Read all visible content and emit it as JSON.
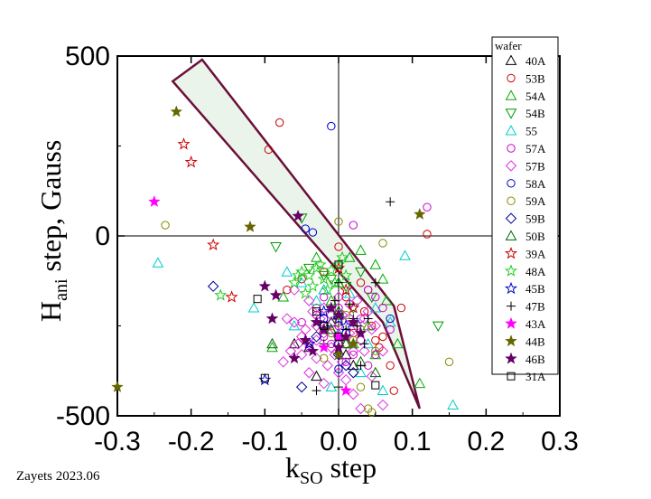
{
  "credit": "Zayets 2023.06",
  "chart_data": {
    "type": "scatter",
    "title": "",
    "xlabel": {
      "main": "k",
      "sub": "SO",
      "rest": " step"
    },
    "ylabel": {
      "main": "H",
      "sub": "ani",
      "rest": " step, Gauss"
    },
    "xlim": [
      -0.3,
      0.3
    ],
    "ylim": [
      -500,
      500
    ],
    "xticks": [
      "-0.3",
      "-0.2",
      "-0.1",
      "0.0",
      "0.1",
      "0.2",
      "0.3"
    ],
    "yticks": [
      "500",
      "0",
      "-500"
    ],
    "legend_title": "wafer",
    "legend_position": "right",
    "grid": false,
    "zero_lines": true,
    "arrow": {
      "shaft_start_left": [
        -0.225,
        430
      ],
      "shaft_start_right": [
        -0.185,
        490
      ],
      "shaft_end_left": [
        0.06,
        -240
      ],
      "shaft_end_right": [
        0.075,
        -195
      ],
      "tip": [
        0.11,
        -480
      ],
      "color": "#6b0f3a",
      "fill": "#eaf4ea"
    },
    "series": [
      {
        "name": "40A",
        "marker": "triangle",
        "color": "#000000",
        "points": [
          [
            -0.04,
            -310
          ],
          [
            -0.03,
            -390
          ],
          [
            -0.02,
            -260
          ],
          [
            0.01,
            -330
          ],
          [
            0.02,
            -360
          ],
          [
            -0.06,
            -300
          ],
          [
            0.0,
            -220
          ],
          [
            -0.01,
            -240
          ]
        ]
      },
      {
        "name": "53B",
        "marker": "circle",
        "color": "#cc0000",
        "points": [
          [
            -0.095,
            240
          ],
          [
            -0.08,
            315
          ],
          [
            0.0,
            -30
          ],
          [
            -0.02,
            -100
          ],
          [
            0.03,
            -130
          ],
          [
            0.04,
            -150
          ],
          [
            0.045,
            -250
          ],
          [
            0.05,
            -290
          ],
          [
            0.055,
            -310
          ],
          [
            0.07,
            -360
          ],
          [
            0.075,
            -430
          ],
          [
            0.12,
            5
          ],
          [
            0.06,
            -280
          ],
          [
            0.085,
            -200
          ],
          [
            0.02,
            -270
          ],
          [
            -0.05,
            -120
          ],
          [
            -0.07,
            -150
          ],
          [
            -0.03,
            -200
          ],
          [
            0.01,
            -170
          ],
          [
            0.035,
            -210
          ]
        ]
      },
      {
        "name": "54A",
        "marker": "triangle",
        "color": "#00aa00",
        "points": [
          [
            0.03,
            -40
          ],
          [
            0.05,
            -80
          ],
          [
            0.06,
            -120
          ],
          [
            0.015,
            -60
          ],
          [
            -0.02,
            -150
          ],
          [
            -0.01,
            -180
          ],
          [
            0.0,
            -130
          ],
          [
            0.04,
            -250
          ],
          [
            0.05,
            -330
          ],
          [
            0.08,
            -300
          ],
          [
            0.11,
            -410
          ],
          [
            -0.09,
            -310
          ],
          [
            -0.075,
            -170
          ],
          [
            0.02,
            -300
          ],
          [
            0.065,
            -180
          ],
          [
            -0.03,
            -60
          ]
        ]
      },
      {
        "name": "54B",
        "marker": "triangle-down",
        "color": "#009900",
        "points": [
          [
            -0.085,
            -30
          ],
          [
            -0.05,
            50
          ],
          [
            0.0,
            -220
          ],
          [
            0.02,
            -200
          ],
          [
            -0.01,
            -120
          ],
          [
            0.135,
            -250
          ],
          [
            0.03,
            -100
          ],
          [
            -0.04,
            -90
          ],
          [
            0.01,
            -140
          ],
          [
            -0.02,
            -110
          ],
          [
            0.045,
            -170
          ]
        ]
      },
      {
        "name": "55",
        "marker": "triangle",
        "color": "#00cccc",
        "points": [
          [
            -0.245,
            -75
          ],
          [
            -0.115,
            -200
          ],
          [
            -0.05,
            -130
          ],
          [
            -0.03,
            -180
          ],
          [
            0.015,
            -160
          ],
          [
            0.09,
            -55
          ],
          [
            0.155,
            -470
          ],
          [
            0.06,
            -430
          ],
          [
            0.04,
            -300
          ],
          [
            0.0,
            -270
          ],
          [
            0.025,
            -240
          ],
          [
            -0.02,
            -150
          ],
          [
            0.05,
            -200
          ],
          [
            0.07,
            -240
          ],
          [
            -0.06,
            -250
          ],
          [
            -0.07,
            -100
          ],
          [
            0.03,
            -380
          ],
          [
            -0.01,
            -420
          ]
        ]
      },
      {
        "name": "57A",
        "marker": "circle",
        "color": "#cc00cc",
        "points": [
          [
            0.12,
            80
          ],
          [
            0.02,
            30
          ],
          [
            0.04,
            -150
          ],
          [
            0.06,
            -200
          ],
          [
            0.0,
            -250
          ],
          [
            -0.02,
            -280
          ],
          [
            0.03,
            -290
          ],
          [
            -0.04,
            -310
          ],
          [
            0.01,
            -350
          ],
          [
            0.05,
            -330
          ],
          [
            -0.01,
            -300
          ],
          [
            0.02,
            -330
          ],
          [
            0.04,
            -360
          ],
          [
            -0.03,
            -220
          ],
          [
            0.0,
            -200
          ],
          [
            0.05,
            -170
          ],
          [
            -0.02,
            -170
          ],
          [
            0.03,
            -230
          ],
          [
            0.07,
            -260
          ],
          [
            -0.05,
            -240
          ]
        ]
      },
      {
        "name": "57B",
        "marker": "diamond",
        "color": "#dd33dd",
        "points": [
          [
            -0.06,
            -240
          ],
          [
            -0.05,
            -280
          ],
          [
            -0.04,
            -300
          ],
          [
            -0.03,
            -250
          ],
          [
            -0.02,
            -270
          ],
          [
            -0.01,
            -310
          ],
          [
            0.0,
            -280
          ],
          [
            0.01,
            -300
          ],
          [
            0.02,
            -320
          ],
          [
            0.03,
            -290
          ],
          [
            -0.035,
            -210
          ],
          [
            -0.025,
            -230
          ],
          [
            -0.015,
            -250
          ],
          [
            -0.005,
            -330
          ],
          [
            0.005,
            -350
          ],
          [
            0.015,
            -270
          ],
          [
            0.025,
            -250
          ],
          [
            0.035,
            -230
          ],
          [
            0.045,
            -260
          ],
          [
            -0.045,
            -260
          ],
          [
            -0.055,
            -300
          ],
          [
            -0.065,
            -320
          ],
          [
            0.0,
            -380
          ],
          [
            0.01,
            -400
          ],
          [
            0.02,
            -440
          ],
          [
            0.03,
            -480
          ],
          [
            -0.015,
            -360
          ],
          [
            -0.03,
            -340
          ],
          [
            0.04,
            -210
          ],
          [
            0.05,
            -250
          ],
          [
            -0.04,
            -180
          ],
          [
            -0.07,
            -230
          ],
          [
            -0.075,
            -350
          ],
          [
            0.06,
            -320
          ],
          [
            -0.02,
            -200
          ],
          [
            0.0,
            -170
          ],
          [
            0.015,
            -230
          ],
          [
            -0.05,
            -330
          ],
          [
            0.025,
            -180
          ],
          [
            -0.01,
            -220
          ],
          [
            -0.04,
            -380
          ],
          [
            -0.02,
            -410
          ],
          [
            0.005,
            -220
          ],
          [
            0.035,
            -320
          ],
          [
            -0.06,
            -150
          ],
          [
            0.06,
            -470
          ],
          [
            0.045,
            -390
          ],
          [
            -0.03,
            -290
          ],
          [
            0.015,
            -190
          ],
          [
            -0.005,
            -260
          ]
        ]
      },
      {
        "name": "58A",
        "marker": "circle",
        "color": "#0000cc",
        "points": [
          [
            -0.01,
            305
          ],
          [
            -0.045,
            20
          ],
          [
            -0.035,
            10
          ],
          [
            0.07,
            -230
          ],
          [
            0.0,
            -370
          ],
          [
            -0.02,
            -230
          ],
          [
            0.01,
            -270
          ]
        ]
      },
      {
        "name": "59A",
        "marker": "circle",
        "color": "#888800",
        "points": [
          [
            -0.235,
            30
          ],
          [
            0.0,
            40
          ],
          [
            0.06,
            -20
          ],
          [
            0.15,
            -350
          ],
          [
            0.04,
            -480
          ],
          [
            0.045,
            -490
          ],
          [
            0.03,
            -420
          ],
          [
            0.01,
            -300
          ],
          [
            -0.02,
            -340
          ],
          [
            0.0,
            -240
          ],
          [
            0.02,
            -290
          ],
          [
            0.05,
            -320
          ],
          [
            -0.01,
            -270
          ],
          [
            0.01,
            -220
          ],
          [
            0.03,
            -260
          ]
        ]
      },
      {
        "name": "59B",
        "marker": "diamond",
        "color": "#000099",
        "points": [
          [
            -0.17,
            -140
          ],
          [
            -0.02,
            -250
          ],
          [
            0.0,
            -330
          ],
          [
            0.01,
            -360
          ],
          [
            -0.03,
            -280
          ],
          [
            -0.05,
            -420
          ],
          [
            0.02,
            -380
          ],
          [
            0.0,
            -300
          ]
        ]
      },
      {
        "name": "50B",
        "marker": "triangle",
        "color": "#006600",
        "points": [
          [
            0.03,
            -350
          ],
          [
            0.05,
            -380
          ],
          [
            0.01,
            -300
          ],
          [
            -0.01,
            -260
          ],
          [
            0.0,
            -210
          ],
          [
            -0.09,
            -300
          ]
        ]
      },
      {
        "name": "39A",
        "marker": "star-open",
        "color": "#cc0000",
        "points": [
          [
            -0.21,
            255
          ],
          [
            -0.2,
            205
          ],
          [
            -0.17,
            -25
          ],
          [
            -0.145,
            -170
          ],
          [
            0.0,
            -90
          ],
          [
            0.01,
            -150
          ],
          [
            0.02,
            -200
          ]
        ]
      },
      {
        "name": "48A",
        "marker": "star-open",
        "color": "#22cc22",
        "points": [
          [
            -0.16,
            -165
          ],
          [
            -0.05,
            -100
          ],
          [
            -0.04,
            -110
          ],
          [
            -0.03,
            -90
          ],
          [
            -0.02,
            -120
          ],
          [
            -0.01,
            -95
          ],
          [
            0.0,
            -80
          ],
          [
            -0.06,
            -130
          ],
          [
            -0.035,
            -140
          ],
          [
            -0.015,
            -150
          ],
          [
            0.01,
            -110
          ],
          [
            -0.045,
            -160
          ],
          [
            -0.025,
            -80
          ],
          [
            0.005,
            -60
          ],
          [
            -0.055,
            -110
          ],
          [
            -0.005,
            -130
          ]
        ]
      },
      {
        "name": "45B",
        "marker": "star-open",
        "color": "#0000cc",
        "points": [
          [
            -0.1,
            -400
          ],
          [
            0.0,
            -230
          ],
          [
            -0.02,
            -210
          ],
          [
            0.01,
            -250
          ],
          [
            -0.04,
            -300
          ]
        ]
      },
      {
        "name": "47B",
        "marker": "plus",
        "color": "#000000",
        "points": [
          [
            0.07,
            95
          ],
          [
            0.05,
            -130
          ],
          [
            -0.03,
            -430
          ],
          [
            0.0,
            -420
          ],
          [
            0.03,
            -360
          ],
          [
            0.02,
            -230
          ],
          [
            -0.01,
            -200
          ],
          [
            0.0,
            -130
          ],
          [
            0.01,
            -260
          ],
          [
            -0.02,
            -300
          ],
          [
            0.035,
            -300
          ],
          [
            0.04,
            -230
          ],
          [
            -0.005,
            -180
          ],
          [
            0.015,
            -190
          ],
          [
            0.025,
            -250
          ]
        ]
      },
      {
        "name": "43A",
        "marker": "star-filled",
        "color": "#ff00ff",
        "points": [
          [
            -0.25,
            95
          ],
          [
            -0.085,
            -165
          ],
          [
            0.01,
            -430
          ],
          [
            -0.02,
            -310
          ],
          [
            0.0,
            -280
          ]
        ]
      },
      {
        "name": "44B",
        "marker": "star-filled",
        "color": "#666600",
        "points": [
          [
            -0.3,
            -420
          ],
          [
            -0.22,
            345
          ],
          [
            -0.12,
            25
          ],
          [
            0.11,
            60
          ],
          [
            0.0,
            -330
          ],
          [
            0.02,
            -300
          ]
        ]
      },
      {
        "name": "46B",
        "marker": "star-filled",
        "color": "#660066",
        "points": [
          [
            -0.085,
            -165
          ],
          [
            -0.1,
            -140
          ],
          [
            -0.09,
            -230
          ],
          [
            -0.06,
            -340
          ],
          [
            -0.035,
            -320
          ],
          [
            -0.02,
            -260
          ],
          [
            -0.01,
            -200
          ],
          [
            0.0,
            -310
          ],
          [
            0.01,
            -280
          ],
          [
            0.03,
            -270
          ],
          [
            -0.055,
            55
          ],
          [
            0.02,
            -240
          ],
          [
            -0.03,
            -240
          ],
          [
            -0.045,
            -290
          ],
          [
            0.0,
            -220
          ]
        ]
      },
      {
        "name": "31A",
        "marker": "square",
        "color": "#000000",
        "points": [
          [
            -0.11,
            -175
          ],
          [
            -0.1,
            -395
          ],
          [
            0.0,
            -80
          ],
          [
            0.05,
            -415
          ],
          [
            -0.03,
            -210
          ],
          [
            -0.02,
            -250
          ],
          [
            0.0,
            -280
          ]
        ]
      }
    ]
  }
}
